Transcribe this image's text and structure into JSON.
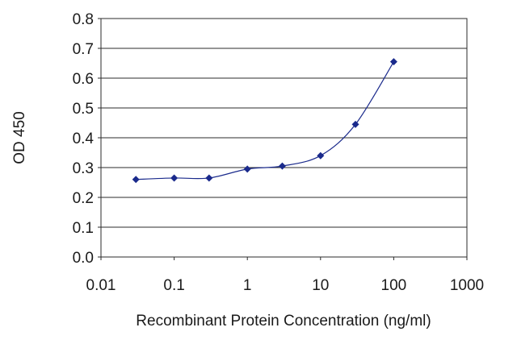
{
  "chart_data": {
    "type": "line",
    "xlabel": "Recombinant Protein Concentration (ng/ml)",
    "ylabel": "OD 450",
    "x_scale": "log",
    "xlim": [
      0.01,
      1000
    ],
    "ylim": [
      0.0,
      0.8
    ],
    "x_ticks": [
      "0.01",
      "0.1",
      "1",
      "10",
      "100",
      "1000"
    ],
    "y_ticks": [
      "0.0",
      "0.1",
      "0.2",
      "0.3",
      "0.4",
      "0.5",
      "0.6",
      "0.7",
      "0.8"
    ],
    "grid": "horizontal",
    "legend": "none",
    "series": [
      {
        "x": [
          0.03,
          0.1,
          0.3,
          1,
          3,
          10,
          30,
          100
        ],
        "y": [
          0.26,
          0.265,
          0.265,
          0.295,
          0.305,
          0.34,
          0.445,
          0.655
        ],
        "color": "#1a2a8c"
      }
    ]
  }
}
